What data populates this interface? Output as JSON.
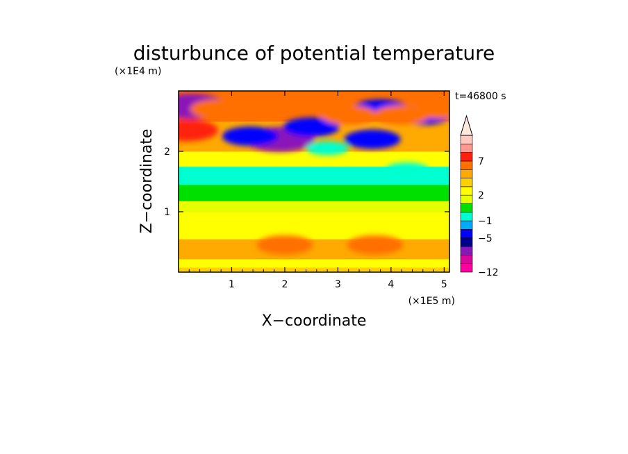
{
  "chart_data": {
    "type": "heatmap",
    "title": "disturbunce of potential temperature",
    "time_label": "t=46800 s",
    "xlabel": "X−coordinate",
    "ylabel": "Z−coordinate",
    "x_unit": "(×1E5 m)",
    "y_unit": "(×1E4 m)",
    "x_ticks": [
      "1",
      "2",
      "3",
      "4",
      "5"
    ],
    "y_ticks": [
      "1",
      "2"
    ],
    "xlim": [
      0,
      5.1
    ],
    "ylim": [
      0,
      3
    ],
    "colorbar": {
      "levels": [
        -12,
        -11,
        -9,
        -7,
        -5,
        -3,
        -1,
        0,
        1,
        2,
        3,
        4,
        5,
        7,
        9,
        11
      ],
      "tick_labels": [
        "−12",
        "−5",
        "−1",
        "2",
        "7"
      ],
      "colors": [
        "#ff00a0",
        "#d8089c",
        "#8a18b8",
        "#00008b",
        "#0000ff",
        "#00aaff",
        "#00ffd0",
        "#00e000",
        "#e6ff00",
        "#ffff00",
        "#ffd000",
        "#ffaa00",
        "#ff7000",
        "#ff2010",
        "#ff9a90",
        "#ffc8c0"
      ],
      "extend": "max"
    },
    "bands": [
      {
        "z": [
          0.0,
          0.08
        ],
        "level": 3
      },
      {
        "z": [
          0.08,
          0.22
        ],
        "level": 2
      },
      {
        "z": [
          0.22,
          0.55
        ],
        "level": 4
      },
      {
        "z": [
          0.55,
          1.0
        ],
        "level": 2
      },
      {
        "z": [
          1.0,
          1.18
        ],
        "level": 1
      },
      {
        "z": [
          1.18,
          1.45
        ],
        "level": 0
      },
      {
        "z": [
          1.45,
          1.75
        ],
        "level": -1
      },
      {
        "z": [
          1.75,
          2.0
        ],
        "level": 2
      },
      {
        "z": [
          2.0,
          2.5
        ],
        "level": 4
      },
      {
        "z": [
          2.5,
          3.0
        ],
        "level": 5
      }
    ],
    "features": [
      {
        "x": 0.25,
        "z": 2.75,
        "level": -9
      },
      {
        "x": 0.15,
        "z": 2.35,
        "level": 7
      },
      {
        "x": 1.9,
        "z": 2.2,
        "level": -9
      },
      {
        "x": 1.35,
        "z": 2.25,
        "level": -5
      },
      {
        "x": 2.5,
        "z": 2.4,
        "level": -5
      },
      {
        "x": 3.65,
        "z": 2.2,
        "level": -5
      },
      {
        "x": 3.8,
        "z": 2.7,
        "level": -5
      },
      {
        "x": 4.6,
        "z": 2.6,
        "level": -5
      },
      {
        "x": 0.75,
        "z": 2.7,
        "level": 5
      },
      {
        "x": 3.2,
        "z": 2.6,
        "level": 5
      },
      {
        "x": 4.2,
        "z": 2.6,
        "level": 5
      },
      {
        "x": 4.95,
        "z": 2.7,
        "level": 5
      },
      {
        "x": 2.0,
        "z": 0.45,
        "level": 5
      },
      {
        "x": 3.7,
        "z": 0.45,
        "level": 5
      },
      {
        "x": 2.8,
        "z": 2.05,
        "level": -1
      },
      {
        "x": 4.3,
        "z": 1.7,
        "level": -1
      }
    ]
  }
}
